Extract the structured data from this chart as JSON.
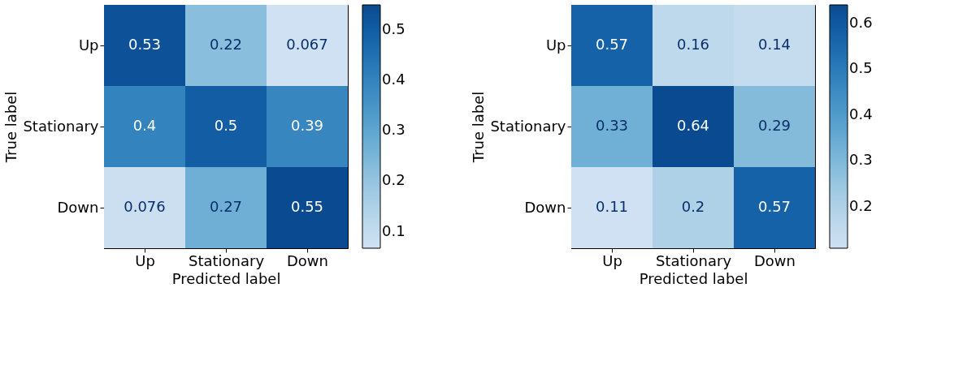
{
  "chart_data": [
    {
      "type": "heatmap",
      "xlabel": "Predicted label",
      "ylabel": "True label",
      "categories": [
        "Up",
        "Stationary",
        "Down"
      ],
      "y_categories": [
        "Up",
        "Stationary",
        "Down"
      ],
      "cells": [
        [
          0.53,
          0.22,
          0.067
        ],
        [
          0.4,
          0.5,
          0.39
        ],
        [
          0.076,
          0.27,
          0.55
        ]
      ],
      "clim": [
        0.067,
        0.55
      ],
      "cticks": [
        0.1,
        0.2,
        0.3,
        0.4,
        0.5
      ],
      "data_labels": true
    },
    {
      "type": "heatmap",
      "xlabel": "Predicted label",
      "ylabel": "True label",
      "categories": [
        "Up",
        "Stationary",
        "Down"
      ],
      "y_categories": [
        "Up",
        "Stationary",
        "Down"
      ],
      "cells": [
        [
          0.57,
          0.16,
          0.14
        ],
        [
          0.33,
          0.64,
          0.29
        ],
        [
          0.11,
          0.2,
          0.57
        ]
      ],
      "clim": [
        0.11,
        0.64
      ],
      "cticks": [
        0.2,
        0.3,
        0.4,
        0.5,
        0.6
      ],
      "data_labels": true
    }
  ]
}
